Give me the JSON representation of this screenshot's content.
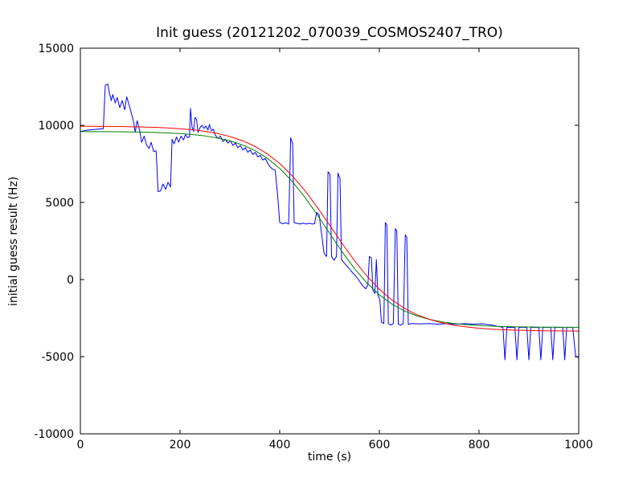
{
  "figure": {
    "background": "#ffffff",
    "axis_color": "#000000"
  },
  "chart_data": {
    "type": "line",
    "title": "Init guess (20121202_070039_COSMOS2407_TRO)",
    "xlabel": "time (s)",
    "ylabel": "initial guess result (Hz)",
    "xlim": [
      0,
      1000
    ],
    "ylim": [
      -10000,
      15000
    ],
    "xticks": [
      0,
      200,
      400,
      600,
      800,
      1000
    ],
    "yticks": [
      -10000,
      -5000,
      0,
      5000,
      10000,
      15000
    ],
    "grid": false,
    "legend": "none",
    "series": [
      {
        "name": "blue-noisy-line",
        "color": "#0000ff",
        "points": [
          [
            0,
            9600
          ],
          [
            12,
            9680
          ],
          [
            25,
            9720
          ],
          [
            38,
            9760
          ],
          [
            46,
            9780
          ],
          [
            50,
            12600
          ],
          [
            55,
            12680
          ],
          [
            58,
            12150
          ],
          [
            62,
            11600
          ],
          [
            65,
            12000
          ],
          [
            70,
            11450
          ],
          [
            74,
            11800
          ],
          [
            79,
            11150
          ],
          [
            84,
            11600
          ],
          [
            89,
            11000
          ],
          [
            93,
            11850
          ],
          [
            98,
            11300
          ],
          [
            103,
            10700
          ],
          [
            107,
            10200
          ],
          [
            110,
            9550
          ],
          [
            114,
            10300
          ],
          [
            119,
            9650
          ],
          [
            123,
            8900
          ],
          [
            128,
            9300
          ],
          [
            133,
            8700
          ],
          [
            138,
            8500
          ],
          [
            142,
            8900
          ],
          [
            147,
            8300
          ],
          [
            152,
            8350
          ],
          [
            156,
            5700
          ],
          [
            161,
            5750
          ],
          [
            166,
            6200
          ],
          [
            171,
            5850
          ],
          [
            176,
            6300
          ],
          [
            181,
            6000
          ],
          [
            184,
            9100
          ],
          [
            188,
            8800
          ],
          [
            193,
            9250
          ],
          [
            197,
            8900
          ],
          [
            202,
            9300
          ],
          [
            207,
            9050
          ],
          [
            211,
            9400
          ],
          [
            215,
            9200
          ],
          [
            219,
            9250
          ],
          [
            221,
            11100
          ],
          [
            224,
            9900
          ],
          [
            227,
            9600
          ],
          [
            230,
            10500
          ],
          [
            233,
            10400
          ],
          [
            236,
            9550
          ],
          [
            240,
            9850
          ],
          [
            244,
            10000
          ],
          [
            248,
            9800
          ],
          [
            252,
            9950
          ],
          [
            256,
            9700
          ],
          [
            259,
            10050
          ],
          [
            263,
            9650
          ],
          [
            267,
            9750
          ],
          [
            271,
            9350
          ],
          [
            276,
            9150
          ],
          [
            281,
            9300
          ],
          [
            286,
            8950
          ],
          [
            291,
            9100
          ],
          [
            296,
            8850
          ],
          [
            301,
            9000
          ],
          [
            306,
            8700
          ],
          [
            311,
            8850
          ],
          [
            316,
            8550
          ],
          [
            321,
            8700
          ],
          [
            326,
            8400
          ],
          [
            331,
            8550
          ],
          [
            336,
            8250
          ],
          [
            341,
            8400
          ],
          [
            346,
            8100
          ],
          [
            351,
            8250
          ],
          [
            356,
            7950
          ],
          [
            361,
            8050
          ],
          [
            366,
            7750
          ],
          [
            371,
            7850
          ],
          [
            376,
            7550
          ],
          [
            381,
            7300
          ],
          [
            386,
            7150
          ],
          [
            391,
            7100
          ],
          [
            396,
            5400
          ],
          [
            400,
            3700
          ],
          [
            406,
            3620
          ],
          [
            412,
            3680
          ],
          [
            418,
            3600
          ],
          [
            422,
            9200
          ],
          [
            426,
            8800
          ],
          [
            429,
            3700
          ],
          [
            435,
            3640
          ],
          [
            441,
            3600
          ],
          [
            447,
            3660
          ],
          [
            453,
            3600
          ],
          [
            459,
            3650
          ],
          [
            465,
            3600
          ],
          [
            470,
            3620
          ],
          [
            474,
            4350
          ],
          [
            479,
            4200
          ],
          [
            484,
            3000
          ],
          [
            489,
            1700
          ],
          [
            494,
            1500
          ],
          [
            497,
            7000
          ],
          [
            501,
            6800
          ],
          [
            504,
            1500
          ],
          [
            509,
            1250
          ],
          [
            514,
            1500
          ],
          [
            517,
            6900
          ],
          [
            521,
            6550
          ],
          [
            524,
            1300
          ],
          [
            529,
            1100
          ],
          [
            534,
            900
          ],
          [
            540,
            700
          ],
          [
            546,
            450
          ],
          [
            552,
            250
          ],
          [
            558,
            0
          ],
          [
            563,
            -250
          ],
          [
            568,
            -450
          ],
          [
            573,
            -600
          ],
          [
            577,
            -300
          ],
          [
            580,
            1500
          ],
          [
            584,
            1400
          ],
          [
            587,
            -700
          ],
          [
            591,
            -900
          ],
          [
            594,
            1300
          ],
          [
            597,
            -1000
          ],
          [
            601,
            -1300
          ],
          [
            604,
            -2750
          ],
          [
            609,
            -2850
          ],
          [
            612,
            3700
          ],
          [
            615,
            3550
          ],
          [
            618,
            -2850
          ],
          [
            623,
            -2950
          ],
          [
            628,
            -2850
          ],
          [
            632,
            3300
          ],
          [
            635,
            3150
          ],
          [
            638,
            -2900
          ],
          [
            643,
            -2950
          ],
          [
            648,
            -2850
          ],
          [
            652,
            2900
          ],
          [
            655,
            2750
          ],
          [
            658,
            -2900
          ],
          [
            666,
            -2850
          ],
          [
            682,
            -2880
          ],
          [
            700,
            -2850
          ],
          [
            718,
            -2890
          ],
          [
            736,
            -2860
          ],
          [
            754,
            -2890
          ],
          [
            772,
            -2860
          ],
          [
            790,
            -2890
          ],
          [
            808,
            -2870
          ],
          [
            826,
            -2950
          ],
          [
            840,
            -3050
          ],
          [
            848,
            -3100
          ],
          [
            852,
            -5200
          ],
          [
            856,
            -3100
          ],
          [
            872,
            -3100
          ],
          [
            876,
            -5200
          ],
          [
            880,
            -3100
          ],
          [
            896,
            -3100
          ],
          [
            900,
            -5200
          ],
          [
            904,
            -3100
          ],
          [
            920,
            -3100
          ],
          [
            924,
            -5200
          ],
          [
            928,
            -3100
          ],
          [
            944,
            -3100
          ],
          [
            948,
            -5200
          ],
          [
            952,
            -3100
          ],
          [
            968,
            -3100
          ],
          [
            972,
            -5200
          ],
          [
            976,
            -3100
          ],
          [
            988,
            -3100
          ],
          [
            994,
            -5000
          ],
          [
            1000,
            -5050
          ]
        ]
      },
      {
        "name": "green-smooth-line",
        "color": "#008000",
        "points": [
          [
            0,
            9594
          ],
          [
            25,
            9591
          ],
          [
            50,
            9587
          ],
          [
            75,
            9580
          ],
          [
            100,
            9571
          ],
          [
            125,
            9557
          ],
          [
            150,
            9538
          ],
          [
            175,
            9508
          ],
          [
            200,
            9466
          ],
          [
            225,
            9403
          ],
          [
            250,
            9313
          ],
          [
            275,
            9182
          ],
          [
            300,
            8998
          ],
          [
            325,
            8734
          ],
          [
            350,
            8367
          ],
          [
            375,
            7868
          ],
          [
            400,
            7208
          ],
          [
            425,
            6373
          ],
          [
            450,
            5363
          ],
          [
            475,
            4219
          ],
          [
            500,
            3006
          ],
          [
            525,
            1811
          ],
          [
            550,
            714
          ],
          [
            575,
            -228
          ],
          [
            600,
            -994
          ],
          [
            625,
            -1586
          ],
          [
            650,
            -2029
          ],
          [
            675,
            -2351
          ],
          [
            700,
            -2580
          ],
          [
            725,
            -2741
          ],
          [
            750,
            -2853
          ],
          [
            775,
            -2931
          ],
          [
            800,
            -2985
          ],
          [
            825,
            -3021
          ],
          [
            850,
            -3046
          ],
          [
            875,
            -3064
          ],
          [
            900,
            -3075
          ],
          [
            925,
            -3083
          ],
          [
            950,
            -3088
          ],
          [
            975,
            -3092
          ],
          [
            1000,
            -3095
          ]
        ]
      },
      {
        "name": "red-fit-line",
        "color": "#ff0000",
        "points": [
          [
            0,
            9940
          ],
          [
            25,
            9936
          ],
          [
            50,
            9930
          ],
          [
            75,
            9922
          ],
          [
            100,
            9909
          ],
          [
            125,
            9892
          ],
          [
            150,
            9867
          ],
          [
            175,
            9832
          ],
          [
            200,
            9782
          ],
          [
            225,
            9711
          ],
          [
            250,
            9610
          ],
          [
            275,
            9470
          ],
          [
            300,
            9276
          ],
          [
            325,
            9005
          ],
          [
            350,
            8640
          ],
          [
            375,
            8154
          ],
          [
            400,
            7524
          ],
          [
            425,
            6734
          ],
          [
            450,
            5786
          ],
          [
            475,
            4704
          ],
          [
            500,
            3538
          ],
          [
            525,
            2357
          ],
          [
            550,
            1233
          ],
          [
            575,
            227
          ],
          [
            600,
            -628
          ],
          [
            625,
            -1319
          ],
          [
            650,
            -1861
          ],
          [
            675,
            -2274
          ],
          [
            700,
            -2577
          ],
          [
            725,
            -2800
          ],
          [
            750,
            -2960
          ],
          [
            775,
            -3075
          ],
          [
            800,
            -3156
          ],
          [
            825,
            -3214
          ],
          [
            850,
            -3254
          ],
          [
            875,
            -3283
          ],
          [
            900,
            -3303
          ],
          [
            925,
            -3317
          ],
          [
            950,
            -3327
          ],
          [
            975,
            -3334
          ],
          [
            1000,
            -3339
          ]
        ]
      }
    ]
  }
}
